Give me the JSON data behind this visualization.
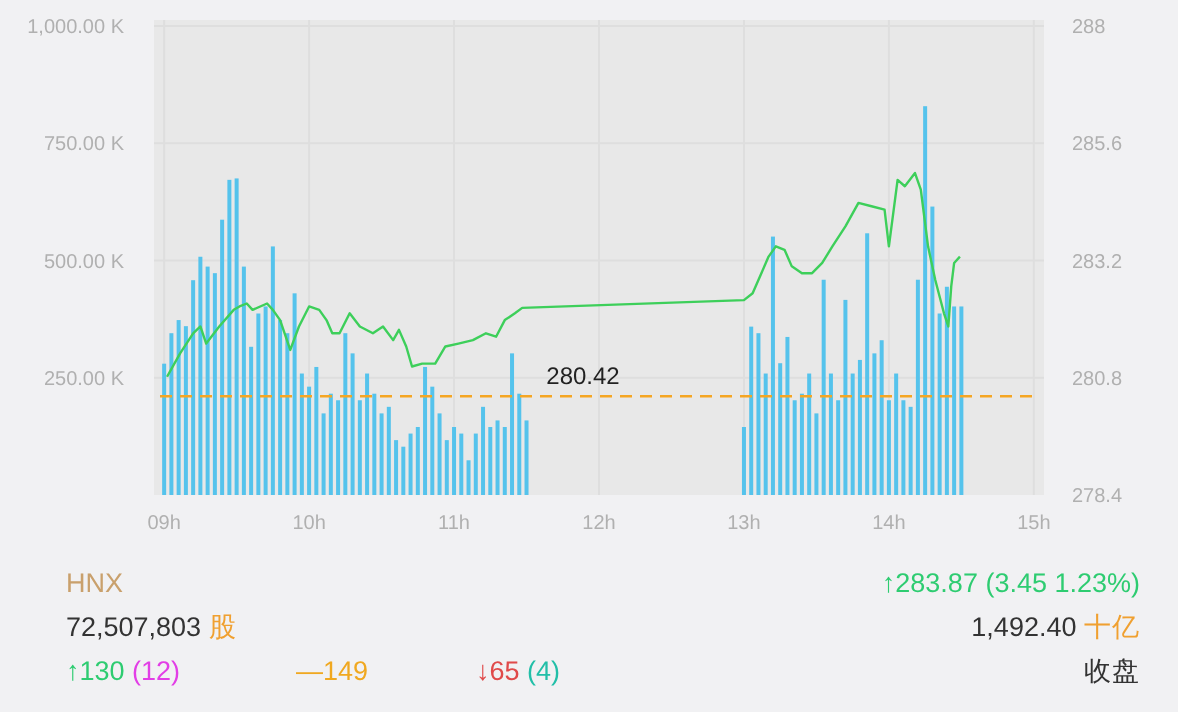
{
  "chart_data": {
    "type": "bar",
    "xlim": [
      8.93,
      15.07
    ],
    "ylim": [
      0,
      1000
    ],
    "y2lim": [
      278.4,
      288
    ],
    "xticks": [
      {
        "value": 9,
        "label": "09h"
      },
      {
        "value": 10,
        "label": "10h"
      },
      {
        "value": 11,
        "label": "11h"
      },
      {
        "value": 12,
        "label": "12h"
      },
      {
        "value": 13,
        "label": "13h"
      },
      {
        "value": 14,
        "label": "14h"
      },
      {
        "value": 15,
        "label": "15h"
      }
    ],
    "yticks": [
      {
        "value": 250,
        "label": "250.00 K"
      },
      {
        "value": 500,
        "label": "500.00 K"
      },
      {
        "value": 750,
        "label": "750.00 K"
      },
      {
        "value": 1000,
        "label": "1,000.00 K"
      }
    ],
    "y2ticks": [
      278.4,
      280.8,
      283.2,
      285.6,
      288
    ],
    "grid": true,
    "series": [
      {
        "color": "#55c3ec",
        "x": [
          9.0,
          9.05,
          9.1,
          9.15,
          9.2,
          9.25,
          9.3,
          9.35,
          9.4,
          9.45,
          9.5,
          9.55,
          9.6,
          9.65,
          9.7,
          9.75,
          9.8,
          9.85,
          9.9,
          9.95,
          10.0,
          10.05,
          10.1,
          10.15,
          10.2,
          10.25,
          10.3,
          10.35,
          10.4,
          10.45,
          10.5,
          10.55,
          10.6,
          10.65,
          10.7,
          10.75,
          10.8,
          10.85,
          10.9,
          10.95,
          11.0,
          11.05,
          11.1,
          11.15,
          11.2,
          11.25,
          11.3,
          11.35,
          11.4,
          11.45,
          11.5,
          13.0,
          13.05,
          13.1,
          13.15,
          13.2,
          13.25,
          13.3,
          13.35,
          13.4,
          13.45,
          13.5,
          13.55,
          13.6,
          13.65,
          13.7,
          13.75,
          13.8,
          13.85,
          13.9,
          13.95,
          14.0,
          14.05,
          14.1,
          14.15,
          14.2,
          14.25,
          14.3,
          14.35,
          14.4,
          14.45,
          14.5
        ],
        "values": [
          280,
          345,
          373,
          360,
          458,
          508,
          487,
          473,
          587,
          672,
          675,
          487,
          316,
          387,
          402,
          530,
          373,
          345,
          430,
          259,
          231,
          273,
          174,
          216,
          202,
          345,
          302,
          202,
          259,
          216,
          174,
          188,
          117,
          103,
          131,
          145,
          273,
          231,
          174,
          117,
          145,
          131,
          74,
          131,
          188,
          145,
          159,
          145,
          302,
          216,
          159,
          145,
          359,
          345,
          259,
          551,
          281,
          337,
          202,
          216,
          259,
          174,
          459,
          259,
          202,
          416,
          259,
          288,
          558,
          302,
          330,
          202,
          259,
          202,
          188,
          459,
          829,
          615,
          387,
          444,
          402,
          402
        ]
      },
      {
        "type": "line",
        "axis": "y2",
        "color": "#3dcf5a",
        "x": [
          9.02,
          9.11,
          9.2,
          9.25,
          9.29,
          9.38,
          9.48,
          9.52,
          9.57,
          9.61,
          9.71,
          9.75,
          9.8,
          9.87,
          9.93,
          10.0,
          10.07,
          10.12,
          10.16,
          10.21,
          10.28,
          10.35,
          10.44,
          10.51,
          10.58,
          10.62,
          10.67,
          10.71,
          10.78,
          10.87,
          10.94,
          11.03,
          11.13,
          11.22,
          11.29,
          11.35,
          11.42,
          11.47,
          13.0,
          13.06,
          13.17,
          13.22,
          13.28,
          13.33,
          13.4,
          13.47,
          13.54,
          13.61,
          13.7,
          13.79,
          13.88,
          13.97,
          14.0,
          14.06,
          14.11,
          14.18,
          14.22,
          14.27,
          14.32,
          14.38,
          14.41,
          14.43,
          14.45,
          14.49
        ],
        "values": [
          280.82,
          281.3,
          281.71,
          281.85,
          281.5,
          281.85,
          282.19,
          282.26,
          282.32,
          282.19,
          282.32,
          282.19,
          281.98,
          281.37,
          281.85,
          282.26,
          282.19,
          281.98,
          281.71,
          281.71,
          282.12,
          281.85,
          281.71,
          281.85,
          281.57,
          281.78,
          281.44,
          281.03,
          281.09,
          281.09,
          281.44,
          281.5,
          281.57,
          281.71,
          281.64,
          281.98,
          282.12,
          282.23,
          282.39,
          282.53,
          283.28,
          283.49,
          283.42,
          283.08,
          282.94,
          282.94,
          283.15,
          283.49,
          283.9,
          284.38,
          284.31,
          284.24,
          283.49,
          284.85,
          284.72,
          284.99,
          284.65,
          283.49,
          282.8,
          282.12,
          281.85,
          282.67,
          283.15,
          283.28
        ]
      }
    ],
    "ref_lines": [
      {
        "axis": "y2",
        "value": 280.42,
        "label": "280.42",
        "color": "#f5a623",
        "line_style": "dashed"
      }
    ],
    "annotations": [
      "HNX",
      "72,507,803",
      "股",
      "↑283.87",
      "(3.45  1.23%)",
      "1,492.40",
      "十亿",
      "↑130",
      "(12)",
      "—149",
      "↓65",
      "(4)",
      "收盘"
    ]
  }
}
